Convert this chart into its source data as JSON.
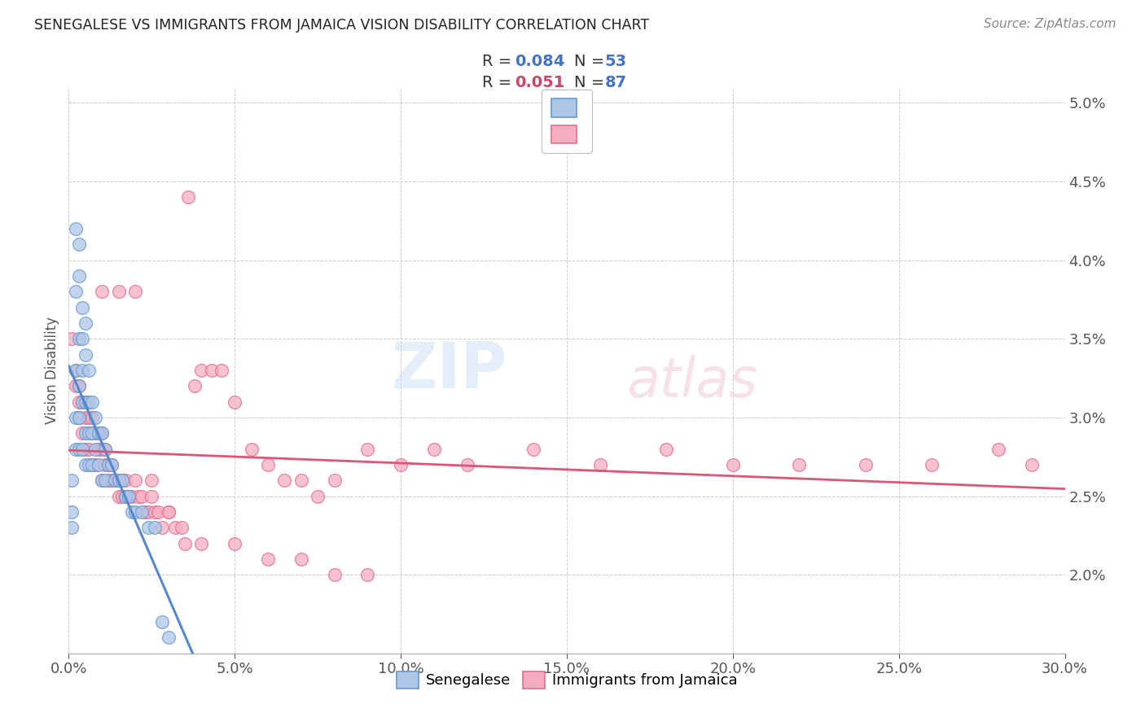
{
  "title": "SENEGALESE VS IMMIGRANTS FROM JAMAICA VISION DISABILITY CORRELATION CHART",
  "source": "Source: ZipAtlas.com",
  "ylabel": "Vision Disability",
  "xlim": [
    0.0,
    0.3
  ],
  "ylim": [
    0.015,
    0.051
  ],
  "ytick_vals": [
    0.02,
    0.025,
    0.03,
    0.035,
    0.04,
    0.045,
    0.05
  ],
  "xtick_vals": [
    0.0,
    0.05,
    0.1,
    0.15,
    0.2,
    0.25,
    0.3
  ],
  "color_sene_face": "#aec6e8",
  "color_sene_edge": "#6699cc",
  "color_jam_face": "#f5aec0",
  "color_jam_edge": "#e07090",
  "color_sene_trendline": "#5588cc",
  "color_jam_trendline": "#dd5577",
  "color_sene_trendline_dash": "#99bbdd",
  "color_text_blue": "#4472c4",
  "color_text_pink": "#cc4466",
  "background": "#ffffff",
  "grid_color": "#cccccc",
  "senegalese_x": [
    0.001,
    0.001,
    0.001,
    0.002,
    0.002,
    0.002,
    0.002,
    0.002,
    0.003,
    0.003,
    0.003,
    0.003,
    0.003,
    0.003,
    0.004,
    0.004,
    0.004,
    0.004,
    0.004,
    0.005,
    0.005,
    0.005,
    0.005,
    0.005,
    0.006,
    0.006,
    0.006,
    0.006,
    0.007,
    0.007,
    0.007,
    0.008,
    0.008,
    0.009,
    0.009,
    0.01,
    0.01,
    0.011,
    0.011,
    0.012,
    0.013,
    0.014,
    0.015,
    0.016,
    0.017,
    0.018,
    0.019,
    0.02,
    0.022,
    0.024,
    0.026,
    0.028,
    0.03
  ],
  "senegalese_y": [
    0.026,
    0.024,
    0.023,
    0.042,
    0.038,
    0.033,
    0.03,
    0.028,
    0.041,
    0.039,
    0.035,
    0.032,
    0.03,
    0.028,
    0.037,
    0.035,
    0.033,
    0.031,
    0.028,
    0.036,
    0.034,
    0.031,
    0.029,
    0.027,
    0.033,
    0.031,
    0.029,
    0.027,
    0.031,
    0.029,
    0.027,
    0.03,
    0.028,
    0.029,
    0.027,
    0.029,
    0.026,
    0.028,
    0.026,
    0.027,
    0.027,
    0.026,
    0.026,
    0.026,
    0.025,
    0.025,
    0.024,
    0.024,
    0.024,
    0.023,
    0.023,
    0.017,
    0.016
  ],
  "jamaica_x": [
    0.001,
    0.002,
    0.002,
    0.003,
    0.003,
    0.003,
    0.004,
    0.004,
    0.005,
    0.005,
    0.005,
    0.006,
    0.006,
    0.007,
    0.007,
    0.007,
    0.008,
    0.008,
    0.009,
    0.009,
    0.01,
    0.01,
    0.01,
    0.011,
    0.011,
    0.012,
    0.012,
    0.013,
    0.013,
    0.014,
    0.015,
    0.015,
    0.016,
    0.016,
    0.017,
    0.017,
    0.018,
    0.019,
    0.02,
    0.021,
    0.022,
    0.023,
    0.024,
    0.025,
    0.026,
    0.027,
    0.028,
    0.03,
    0.032,
    0.034,
    0.036,
    0.038,
    0.04,
    0.043,
    0.046,
    0.05,
    0.055,
    0.06,
    0.065,
    0.07,
    0.075,
    0.08,
    0.09,
    0.1,
    0.11,
    0.12,
    0.14,
    0.16,
    0.18,
    0.2,
    0.22,
    0.24,
    0.26,
    0.28,
    0.29,
    0.01,
    0.015,
    0.02,
    0.025,
    0.03,
    0.035,
    0.04,
    0.05,
    0.06,
    0.07,
    0.08,
    0.09
  ],
  "jamaica_y": [
    0.035,
    0.033,
    0.032,
    0.032,
    0.031,
    0.03,
    0.031,
    0.029,
    0.031,
    0.03,
    0.028,
    0.03,
    0.028,
    0.03,
    0.029,
    0.027,
    0.029,
    0.027,
    0.029,
    0.028,
    0.029,
    0.028,
    0.026,
    0.028,
    0.027,
    0.027,
    0.026,
    0.027,
    0.026,
    0.026,
    0.026,
    0.025,
    0.026,
    0.025,
    0.026,
    0.025,
    0.025,
    0.025,
    0.026,
    0.025,
    0.025,
    0.024,
    0.024,
    0.025,
    0.024,
    0.024,
    0.023,
    0.024,
    0.023,
    0.023,
    0.044,
    0.032,
    0.033,
    0.033,
    0.033,
    0.031,
    0.028,
    0.027,
    0.026,
    0.026,
    0.025,
    0.026,
    0.028,
    0.027,
    0.028,
    0.027,
    0.028,
    0.027,
    0.028,
    0.027,
    0.027,
    0.027,
    0.027,
    0.028,
    0.027,
    0.038,
    0.038,
    0.038,
    0.026,
    0.024,
    0.022,
    0.022,
    0.022,
    0.021,
    0.021,
    0.02,
    0.02
  ],
  "watermark_zip": "ZIP",
  "watermark_atlas": "atlas"
}
